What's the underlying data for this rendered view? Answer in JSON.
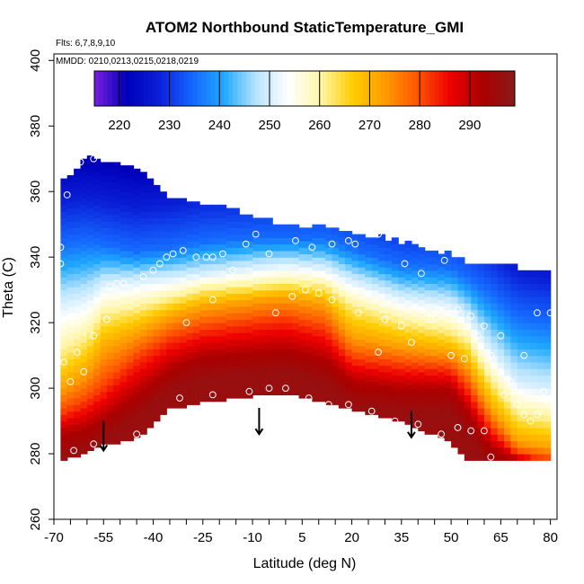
{
  "chart_data": {
    "type": "heatmap",
    "title": "ATOM2 Northbound StaticTemperature_GMI",
    "flights_label": "Flts: 6,7,8,9,10",
    "dates_label": "MMDD: 0210,0213,0215,0218,0219",
    "xlabel": "Latitude (deg N)",
    "ylabel": "Theta (C)",
    "xlim": [
      -70,
      82
    ],
    "ylim": [
      260,
      402
    ],
    "xticks": [
      -70,
      -55,
      -40,
      -25,
      -10,
      5,
      20,
      35,
      50,
      65,
      80
    ],
    "yticks": [
      260,
      280,
      300,
      320,
      340,
      360,
      380,
      400
    ],
    "colorbar": {
      "range": [
        215,
        299
      ],
      "ticks": [
        220,
        230,
        240,
        250,
        260,
        270,
        280,
        290
      ],
      "colors": [
        "#7a1fe0",
        "#0000b8",
        "#0a1fd8",
        "#1565ff",
        "#1fa8ff",
        "#b8e4ff",
        "#ffffff",
        "#fff6a8",
        "#ffcc00",
        "#ff9a00",
        "#ff5500",
        "#ee0000",
        "#aa0000",
        "#8a1a1a"
      ]
    },
    "field": {
      "columns": [
        {
          "lat": -68,
          "bottom": 278,
          "top": 362,
          "iso": [
            344,
            326,
            310,
            300,
            292,
            286
          ]
        },
        {
          "lat": -60,
          "bottom": 281,
          "top": 370,
          "iso": [
            345,
            328,
            315,
            305,
            296,
            288
          ]
        },
        {
          "lat": -55,
          "bottom": 283,
          "top": 369,
          "iso": [
            344,
            332,
            322,
            312,
            300,
            291
          ]
        },
        {
          "lat": -45,
          "bottom": 285,
          "top": 366,
          "iso": [
            342,
            333,
            324,
            317,
            309,
            298
          ]
        },
        {
          "lat": -35,
          "bottom": 294,
          "top": 357,
          "iso": [
            343,
            334,
            327,
            322,
            315,
            306
          ]
        },
        {
          "lat": -25,
          "bottom": 296,
          "top": 356,
          "iso": [
            345,
            335,
            330,
            325,
            318,
            310
          ]
        },
        {
          "lat": -10,
          "bottom": 298,
          "top": 352,
          "iso": [
            346,
            337,
            331,
            327,
            320,
            311
          ]
        },
        {
          "lat": 0,
          "bottom": 299,
          "top": 349,
          "iso": [
            346,
            338,
            332,
            328,
            321,
            312
          ]
        },
        {
          "lat": 12,
          "bottom": 296,
          "top": 348,
          "iso": [
            346,
            337,
            331,
            326,
            318,
            309
          ]
        },
        {
          "lat": 20,
          "bottom": 294,
          "top": 347,
          "iso": [
            343,
            333,
            325,
            316,
            309,
            302
          ]
        },
        {
          "lat": 35,
          "bottom": 290,
          "top": 344,
          "iso": [
            338,
            328,
            320,
            313,
            307,
            300
          ]
        },
        {
          "lat": 50,
          "bottom": 284,
          "top": 340,
          "iso": [
            337,
            326,
            317,
            311,
            306,
            300
          ]
        },
        {
          "lat": 55,
          "bottom": 278,
          "top": 338,
          "iso": [
            334,
            322,
            314,
            307,
            300,
            293
          ]
        },
        {
          "lat": 62,
          "bottom": 278,
          "top": 337,
          "iso": [
            329,
            312,
            302,
            294,
            288,
            282
          ]
        },
        {
          "lat": 70,
          "bottom": 278,
          "top": 336,
          "iso": [
            322,
            302,
            292,
            284,
            280,
            278
          ]
        },
        {
          "lat": 80,
          "bottom": 278,
          "top": 335,
          "iso": [
            320,
            300,
            290,
            282,
            278,
            278
          ]
        }
      ],
      "iso_levels": [
        235,
        250,
        262,
        272,
        282,
        292
      ]
    },
    "arrows": [
      {
        "lat": -55,
        "theta_from": 290,
        "theta_to": 281
      },
      {
        "lat": -8,
        "theta_from": 294,
        "theta_to": 286
      },
      {
        "lat": 38,
        "theta_from": 293,
        "theta_to": 285
      }
    ],
    "obs_points": [
      {
        "x": -68,
        "y": 338
      },
      {
        "x": -68,
        "y": 343
      },
      {
        "x": -66,
        "y": 359
      },
      {
        "x": -62,
        "y": 369
      },
      {
        "x": -58,
        "y": 370
      },
      {
        "x": -67,
        "y": 308
      },
      {
        "x": -65,
        "y": 302
      },
      {
        "x": -63,
        "y": 311
      },
      {
        "x": -61,
        "y": 305
      },
      {
        "x": -58,
        "y": 316
      },
      {
        "x": -54,
        "y": 321
      },
      {
        "x": -53,
        "y": 331
      },
      {
        "x": -51,
        "y": 332
      },
      {
        "x": -49,
        "y": 332
      },
      {
        "x": -43,
        "y": 334
      },
      {
        "x": -40,
        "y": 336
      },
      {
        "x": -38,
        "y": 338
      },
      {
        "x": -36,
        "y": 340
      },
      {
        "x": -34,
        "y": 341
      },
      {
        "x": -31,
        "y": 342
      },
      {
        "x": -27,
        "y": 340
      },
      {
        "x": -24,
        "y": 340
      },
      {
        "x": -22,
        "y": 340
      },
      {
        "x": -19,
        "y": 341
      },
      {
        "x": -16,
        "y": 336
      },
      {
        "x": -12,
        "y": 344
      },
      {
        "x": -9,
        "y": 347
      },
      {
        "x": -5,
        "y": 341
      },
      {
        "x": 3,
        "y": 345
      },
      {
        "x": 8,
        "y": 343
      },
      {
        "x": 14,
        "y": 344
      },
      {
        "x": 19,
        "y": 345
      },
      {
        "x": 21,
        "y": 344
      },
      {
        "x": 28,
        "y": 347
      },
      {
        "x": 36,
        "y": 338
      },
      {
        "x": 41,
        "y": 335
      },
      {
        "x": 48,
        "y": 339
      },
      {
        "x": -30,
        "y": 320
      },
      {
        "x": -22,
        "y": 327
      },
      {
        "x": -3,
        "y": 323
      },
      {
        "x": 2,
        "y": 328
      },
      {
        "x": 6,
        "y": 330
      },
      {
        "x": 10,
        "y": 329
      },
      {
        "x": 14,
        "y": 327
      },
      {
        "x": 22,
        "y": 323
      },
      {
        "x": 30,
        "y": 321
      },
      {
        "x": 35,
        "y": 319
      },
      {
        "x": 41,
        "y": 324
      },
      {
        "x": 44,
        "y": 321
      },
      {
        "x": 46,
        "y": 324
      },
      {
        "x": 52,
        "y": 324
      },
      {
        "x": 56,
        "y": 322
      },
      {
        "x": 60,
        "y": 319
      },
      {
        "x": 65,
        "y": 316
      },
      {
        "x": 72,
        "y": 310
      },
      {
        "x": 76,
        "y": 323
      },
      {
        "x": 80,
        "y": 323
      },
      {
        "x": 62,
        "y": 310
      },
      {
        "x": 65,
        "y": 305
      },
      {
        "x": 68,
        "y": 302
      },
      {
        "x": 70,
        "y": 295
      },
      {
        "x": 72,
        "y": 292
      },
      {
        "x": 74,
        "y": 290
      },
      {
        "x": 78,
        "y": 299
      },
      {
        "x": 76,
        "y": 292
      },
      {
        "x": 66,
        "y": 298
      },
      {
        "x": 60,
        "y": 287
      },
      {
        "x": 56,
        "y": 287
      },
      {
        "x": 52,
        "y": 288
      },
      {
        "x": 47,
        "y": 286
      },
      {
        "x": 40,
        "y": 289
      },
      {
        "x": 33,
        "y": 290
      },
      {
        "x": 26,
        "y": 293
      },
      {
        "x": 19,
        "y": 295
      },
      {
        "x": 13,
        "y": 295
      },
      {
        "x": 7,
        "y": 297
      },
      {
        "x": 0,
        "y": 300
      },
      {
        "x": -5,
        "y": 300
      },
      {
        "x": -11,
        "y": 299
      },
      {
        "x": -22,
        "y": 298
      },
      {
        "x": -32,
        "y": 297
      },
      {
        "x": -45,
        "y": 286
      },
      {
        "x": -58,
        "y": 283
      },
      {
        "x": -64,
        "y": 281
      },
      {
        "x": 62,
        "y": 279
      },
      {
        "x": 38,
        "y": 314
      },
      {
        "x": 28,
        "y": 311
      },
      {
        "x": 50,
        "y": 310
      },
      {
        "x": 54,
        "y": 309
      },
      {
        "x": 58,
        "y": 316
      }
    ]
  }
}
